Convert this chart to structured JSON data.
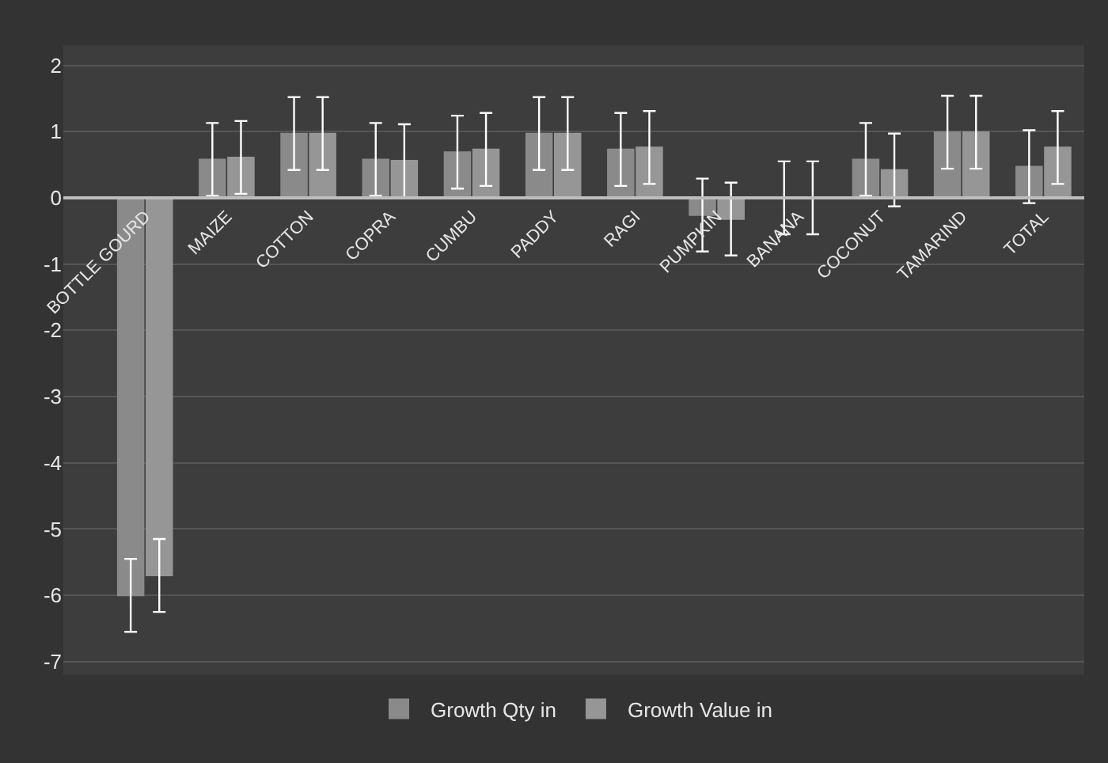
{
  "chart_data": {
    "type": "bar",
    "categories": [
      "BOTTLE GOURD",
      "MAIZE",
      "COTTON",
      "COPRA",
      "CUMBU",
      "PADDY",
      "RAGI",
      "PUMPKIN",
      "BANANA",
      "COCONUT",
      "TAMARIND",
      "TOTAL"
    ],
    "series": [
      {
        "name": "Growth Qty in",
        "color": "#8a8a8a",
        "values": [
          -6.0,
          0.58,
          0.97,
          0.58,
          0.69,
          0.97,
          0.73,
          -0.26,
          0,
          0.58,
          0.99,
          0.47
        ],
        "errors": [
          0.55,
          0.55,
          0.55,
          0.55,
          0.55,
          0.55,
          0.55,
          0.55,
          0.55,
          0.55,
          0.55,
          0.55
        ]
      },
      {
        "name": "Growth Value in",
        "color": "#969696",
        "values": [
          -5.7,
          0.61,
          0.97,
          0.56,
          0.73,
          0.97,
          0.76,
          -0.32,
          0,
          0.42,
          0.99,
          0.76
        ],
        "errors": [
          0.55,
          0.55,
          0.55,
          0.55,
          0.55,
          0.55,
          0.55,
          0.55,
          0.55,
          0.55,
          0.55,
          0.55
        ]
      }
    ],
    "ylim": [
      -7.2,
      2.3
    ],
    "yticks": [
      2,
      1,
      0,
      -1,
      -2,
      -3,
      -4,
      -5,
      -6,
      -7
    ],
    "grid": "y",
    "legend": "bottom"
  }
}
